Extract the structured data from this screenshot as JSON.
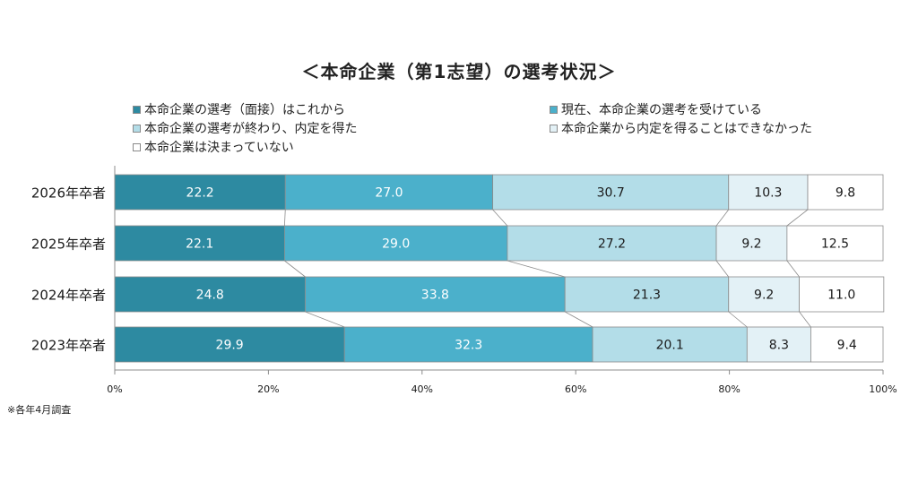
{
  "chart_data": {
    "type": "bar",
    "orientation": "horizontal",
    "stacked": true,
    "title": "＜本命企業（第1志望）の選考状況＞",
    "categories": [
      "2026年卒者",
      "2025年卒者",
      "2024年卒者",
      "2023年卒者"
    ],
    "series": [
      {
        "name": "本命企業の選考（面接）はこれから",
        "color": "#2d8aa1",
        "values": [
          22.2,
          22.1,
          24.8,
          29.9
        ]
      },
      {
        "name": "現在、本命企業の選考を受けている",
        "color": "#4bb0cb",
        "values": [
          27.0,
          29.0,
          33.8,
          32.3
        ]
      },
      {
        "name": "本命企業の選考が終わり、内定を得た",
        "color": "#b3dde8",
        "values": [
          30.7,
          27.2,
          21.3,
          20.1
        ]
      },
      {
        "name": "本命企業から内定を得ることはできなかった",
        "color": "#e3f1f6",
        "values": [
          10.3,
          9.2,
          9.2,
          8.3
        ]
      },
      {
        "name": "本命企業は決まっていない",
        "color": "#ffffff",
        "values": [
          9.8,
          12.5,
          11.0,
          9.4
        ]
      }
    ],
    "xlim": [
      0,
      100
    ],
    "xticks": [
      "0%",
      "20%",
      "40%",
      "60%",
      "80%",
      "100%"
    ],
    "legend_position": "top",
    "grid": false
  },
  "footnote": "※各年4月調査"
}
